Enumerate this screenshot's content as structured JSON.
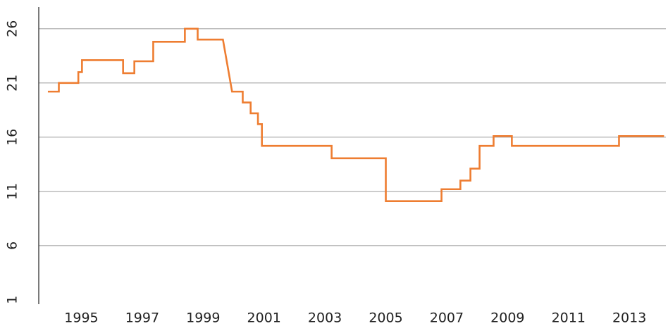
{
  "chart_data": {
    "type": "line",
    "color": "#ee7d31",
    "grid": true,
    "x": [
      1993.9,
      1994.26,
      1994.26,
      1994.9,
      1994.9,
      1995.02,
      1995.02,
      1996.37,
      1996.37,
      1996.74,
      1996.74,
      1997.36,
      1997.36,
      1998.4,
      1998.4,
      1998.82,
      1998.82,
      1999.65,
      1999.95,
      2000.3,
      2000.3,
      2000.56,
      2000.56,
      2000.8,
      2000.8,
      2000.93,
      2000.93,
      2003.22,
      2003.22,
      2005.0,
      2005.0,
      2006.83,
      2006.83,
      2007.45,
      2007.45,
      2007.78,
      2007.78,
      2008.08,
      2008.08,
      2008.54,
      2008.54,
      2009.14,
      2009.14,
      2012.66,
      2012.66,
      2014.14
    ],
    "values": [
      20.2,
      20.2,
      21,
      21,
      22,
      22,
      23.1,
      23.1,
      21.9,
      21.9,
      23,
      23,
      24.8,
      24.8,
      26,
      26,
      25,
      25,
      20.2,
      20.2,
      19.2,
      19.2,
      18.2,
      18.2,
      17.2,
      17.2,
      15.2,
      15.2,
      14.05,
      14.05,
      10.1,
      10.1,
      11.2,
      11.2,
      12,
      12,
      13.1,
      13.1,
      15.2,
      15.2,
      16.1,
      16.1,
      15.2,
      15.2,
      16.1,
      16.1
    ],
    "xlim": [
      1993.6,
      2014.2
    ],
    "xticks": [
      1995,
      1997,
      1999,
      2001,
      2003,
      2005,
      2007,
      2009,
      2011,
      2013
    ],
    "ylim": [
      0.6,
      28
    ],
    "yticks": [
      1,
      6,
      11,
      16,
      21,
      26
    ]
  }
}
